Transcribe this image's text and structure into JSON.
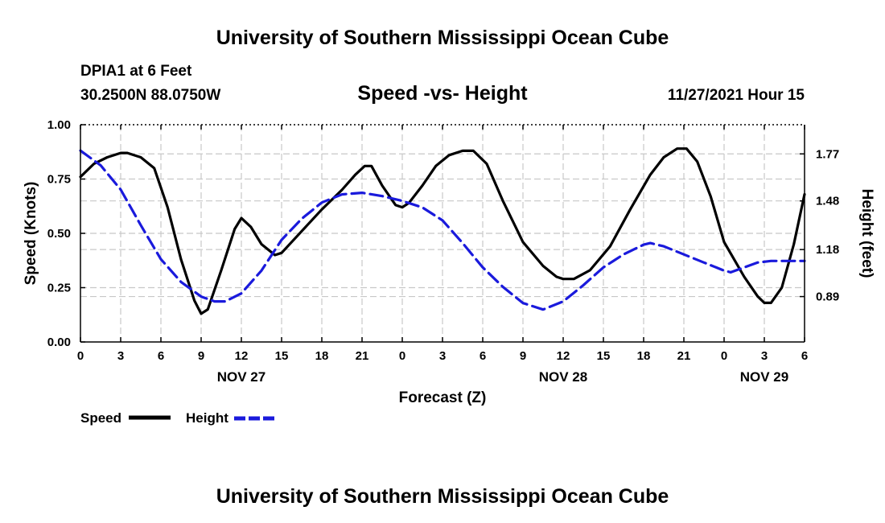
{
  "page": {
    "title": "University of Southern Mississippi Ocean Cube",
    "footer_title": "University of Southern Mississippi Ocean Cube"
  },
  "header": {
    "station": "DPIA1 at 6 Feet",
    "location": "30.2500N  88.0750W",
    "chart_title": "Speed -vs- Height",
    "timestamp": "11/27/2021 Hour 15"
  },
  "legend": {
    "speed_label": "Speed",
    "height_label": "Height"
  },
  "chart_data": {
    "type": "line",
    "title": "Speed -vs- Height",
    "xlabel": "Forecast (Z)",
    "ylabel": "Speed (Knots)",
    "y2label": "Height (feet)",
    "x_unit": "hours since NOV 27 00Z",
    "xlim": [
      0,
      54
    ],
    "ylim": [
      0,
      1
    ],
    "y2lim": [
      0.61,
      1.95
    ],
    "x_ticks": [
      {
        "x": 0,
        "label": "0"
      },
      {
        "x": 3,
        "label": "3"
      },
      {
        "x": 6,
        "label": "6"
      },
      {
        "x": 9,
        "label": "9"
      },
      {
        "x": 12,
        "label": "12"
      },
      {
        "x": 15,
        "label": "15"
      },
      {
        "x": 18,
        "label": "18"
      },
      {
        "x": 21,
        "label": "21"
      },
      {
        "x": 24,
        "label": "0"
      },
      {
        "x": 27,
        "label": "3"
      },
      {
        "x": 30,
        "label": "6"
      },
      {
        "x": 33,
        "label": "9"
      },
      {
        "x": 36,
        "label": "12"
      },
      {
        "x": 39,
        "label": "15"
      },
      {
        "x": 42,
        "label": "18"
      },
      {
        "x": 45,
        "label": "21"
      },
      {
        "x": 48,
        "label": "0"
      },
      {
        "x": 51,
        "label": "3"
      },
      {
        "x": 54,
        "label": "6"
      }
    ],
    "date_labels": [
      {
        "x": 12,
        "label": "NOV 27"
      },
      {
        "x": 36,
        "label": "NOV 28"
      },
      {
        "x": 51,
        "label": "NOV 29"
      }
    ],
    "y_ticks": [
      {
        "v": 0,
        "label": "0.00"
      },
      {
        "v": 0.25,
        "label": "0.25"
      },
      {
        "v": 0.5,
        "label": "0.50"
      },
      {
        "v": 0.75,
        "label": "0.75"
      },
      {
        "v": 1,
        "label": "1.00"
      }
    ],
    "y2_ticks": [
      {
        "v": 0.89,
        "label": "0.89"
      },
      {
        "v": 1.18,
        "label": "1.18"
      },
      {
        "v": 1.48,
        "label": "1.48"
      },
      {
        "v": 1.77,
        "label": "1.77"
      }
    ],
    "series": [
      {
        "name": "Speed",
        "axis": "left",
        "color": "#000000",
        "style": "solid",
        "points": [
          [
            0,
            0.76
          ],
          [
            1,
            0.82
          ],
          [
            2,
            0.85
          ],
          [
            3,
            0.87
          ],
          [
            3.5,
            0.87
          ],
          [
            4.5,
            0.85
          ],
          [
            5.5,
            0.8
          ],
          [
            6.5,
            0.62
          ],
          [
            7.5,
            0.38
          ],
          [
            8.5,
            0.19
          ],
          [
            9,
            0.13
          ],
          [
            9.5,
            0.15
          ],
          [
            10.5,
            0.33
          ],
          [
            11.5,
            0.52
          ],
          [
            12,
            0.57
          ],
          [
            12.7,
            0.53
          ],
          [
            13.5,
            0.45
          ],
          [
            14.5,
            0.4
          ],
          [
            15,
            0.41
          ],
          [
            16.5,
            0.51
          ],
          [
            18,
            0.61
          ],
          [
            19.5,
            0.7
          ],
          [
            20.5,
            0.77
          ],
          [
            21.2,
            0.81
          ],
          [
            21.7,
            0.81
          ],
          [
            22.5,
            0.72
          ],
          [
            23.5,
            0.63
          ],
          [
            24,
            0.62
          ],
          [
            24.5,
            0.64
          ],
          [
            25.5,
            0.72
          ],
          [
            26.5,
            0.81
          ],
          [
            27.5,
            0.86
          ],
          [
            28.5,
            0.88
          ],
          [
            29.3,
            0.88
          ],
          [
            30.3,
            0.82
          ],
          [
            31.5,
            0.65
          ],
          [
            33,
            0.46
          ],
          [
            34.5,
            0.35
          ],
          [
            35.5,
            0.3
          ],
          [
            36,
            0.29
          ],
          [
            36.8,
            0.29
          ],
          [
            38,
            0.33
          ],
          [
            39.5,
            0.44
          ],
          [
            41,
            0.61
          ],
          [
            42.5,
            0.77
          ],
          [
            43.5,
            0.85
          ],
          [
            44.5,
            0.89
          ],
          [
            45.2,
            0.89
          ],
          [
            46,
            0.83
          ],
          [
            47,
            0.67
          ],
          [
            48,
            0.46
          ],
          [
            49.5,
            0.3
          ],
          [
            50.5,
            0.21
          ],
          [
            51,
            0.18
          ],
          [
            51.5,
            0.18
          ],
          [
            52.3,
            0.25
          ],
          [
            53.2,
            0.45
          ],
          [
            54,
            0.68
          ]
        ]
      },
      {
        "name": "Height",
        "axis": "right",
        "color": "#1a1adc",
        "style": "dashed",
        "points": [
          [
            0,
            1.79
          ],
          [
            1.5,
            1.7
          ],
          [
            3,
            1.55
          ],
          [
            4.5,
            1.33
          ],
          [
            6,
            1.12
          ],
          [
            7.5,
            0.98
          ],
          [
            9,
            0.89
          ],
          [
            10,
            0.86
          ],
          [
            10.8,
            0.86
          ],
          [
            12,
            0.91
          ],
          [
            13.5,
            1.05
          ],
          [
            15,
            1.24
          ],
          [
            16.5,
            1.37
          ],
          [
            18,
            1.47
          ],
          [
            19.5,
            1.52
          ],
          [
            21,
            1.53
          ],
          [
            22.5,
            1.51
          ],
          [
            24,
            1.48
          ],
          [
            25.5,
            1.44
          ],
          [
            27,
            1.36
          ],
          [
            28.5,
            1.22
          ],
          [
            30,
            1.07
          ],
          [
            31.5,
            0.95
          ],
          [
            33,
            0.85
          ],
          [
            34.5,
            0.81
          ],
          [
            36,
            0.86
          ],
          [
            37.5,
            0.96
          ],
          [
            39,
            1.07
          ],
          [
            40.5,
            1.15
          ],
          [
            42,
            1.21
          ],
          [
            42.5,
            1.22
          ],
          [
            43.5,
            1.2
          ],
          [
            45,
            1.15
          ],
          [
            46.5,
            1.1
          ],
          [
            48,
            1.05
          ],
          [
            48.5,
            1.04
          ],
          [
            49.5,
            1.07
          ],
          [
            50.5,
            1.1
          ],
          [
            51.5,
            1.11
          ],
          [
            53,
            1.11
          ],
          [
            54,
            1.11
          ]
        ]
      }
    ]
  }
}
